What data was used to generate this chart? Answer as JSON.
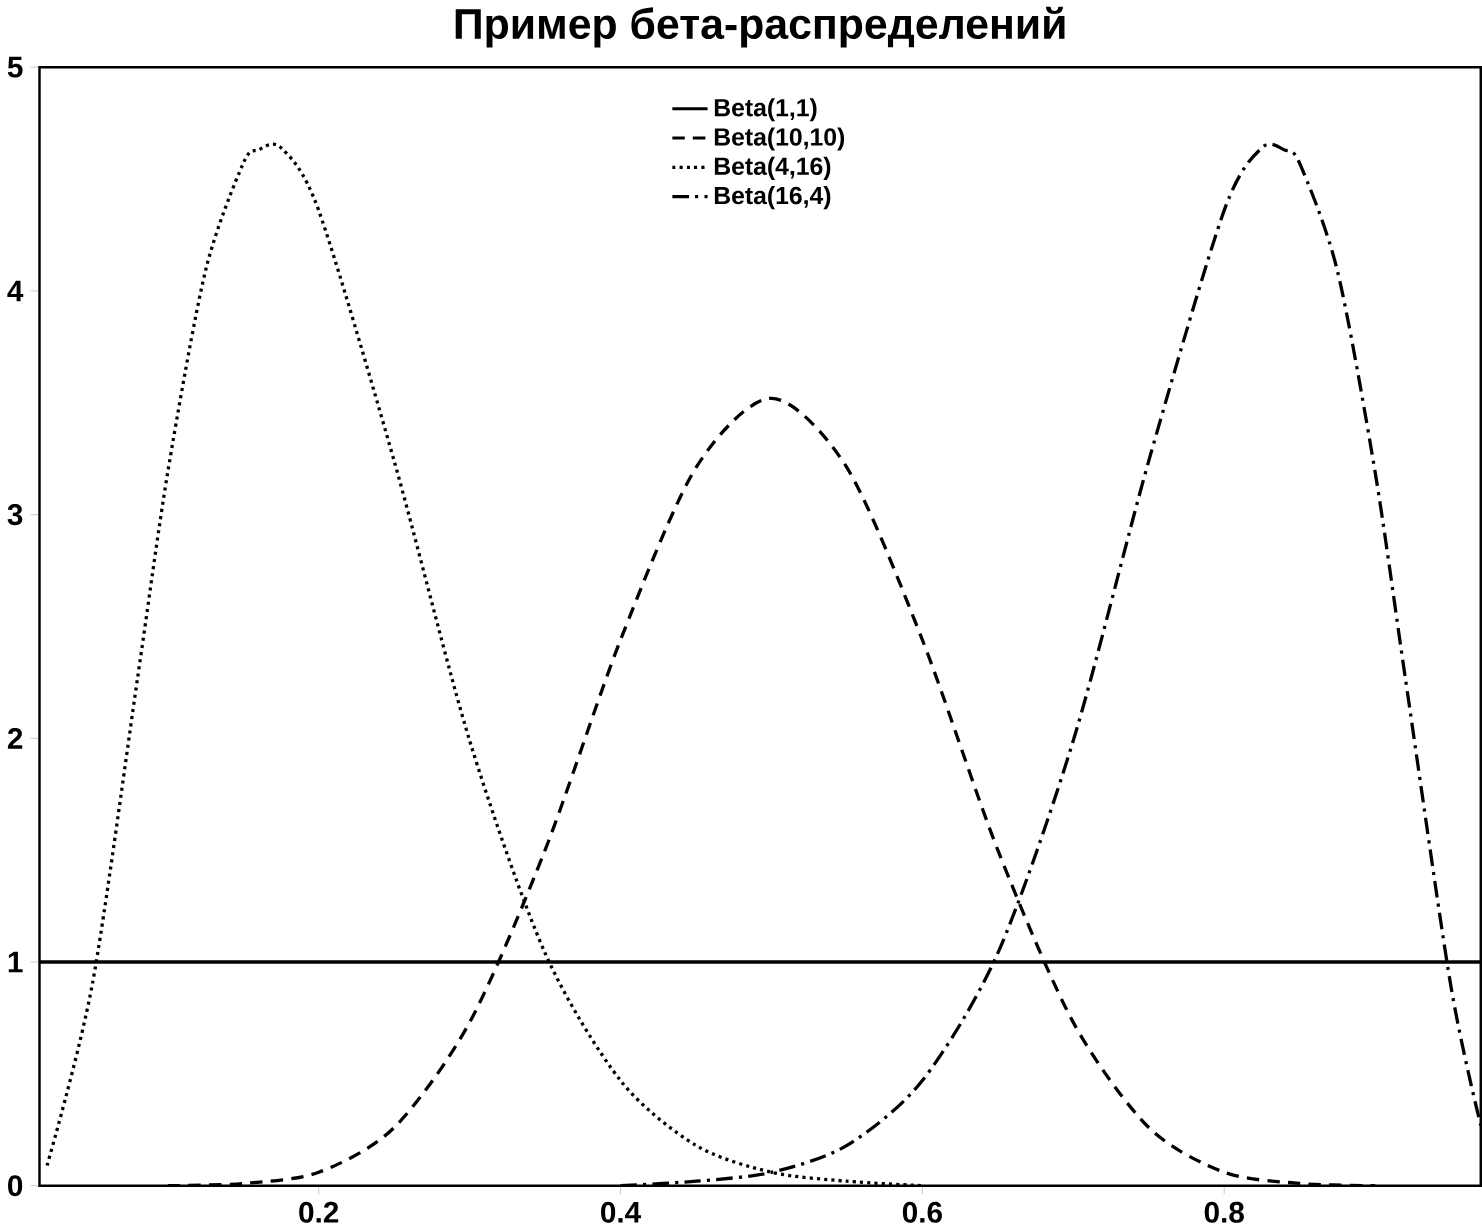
{
  "chart_data": {
    "type": "line",
    "title": "Пример бета-распределений",
    "xlim": [
      0.015,
      0.97
    ],
    "ylim": [
      0,
      5
    ],
    "xticks": [
      0.2,
      0.4,
      0.6,
      0.8
    ],
    "yticks": [
      0,
      1,
      2,
      3,
      4,
      5
    ],
    "legend": "top",
    "grid": false,
    "series": [
      {
        "name": "Beta(1,1)",
        "color": "#000000",
        "line_style": "solid",
        "x": [
          0.015,
          0.97
        ],
        "values": [
          1,
          1
        ]
      },
      {
        "name": "Beta(10,10)",
        "color": "#000000",
        "line_style": "dashed",
        "x": [
          0.1,
          0.15,
          0.2,
          0.25,
          0.3,
          0.35,
          0.4,
          0.45,
          0.5,
          0.55,
          0.6,
          0.65,
          0.7,
          0.75,
          0.8,
          0.85,
          0.9
        ],
        "values": [
          0.0,
          0.01,
          0.06,
          0.26,
          0.73,
          1.5,
          2.44,
          3.21,
          3.52,
          3.21,
          2.44,
          1.5,
          0.73,
          0.26,
          0.06,
          0.01,
          0.0
        ]
      },
      {
        "name": "Beta(4,16)",
        "color": "#000000",
        "line_style": "dotted",
        "x": [
          0.02,
          0.05,
          0.08,
          0.1,
          0.125,
          0.15,
          0.16,
          0.175,
          0.2,
          0.25,
          0.3,
          0.35,
          0.4,
          0.45,
          0.5,
          0.55,
          0.6
        ],
        "values": [
          0.09,
          0.9,
          2.27,
          3.19,
          4.09,
          4.57,
          4.63,
          4.64,
          4.36,
          3.24,
          1.99,
          1.04,
          0.47,
          0.18,
          0.06,
          0.02,
          0.0
        ]
      },
      {
        "name": "Beta(16,4)",
        "color": "#000000",
        "line_style": "dashdot",
        "x": [
          0.4,
          0.45,
          0.5,
          0.55,
          0.6,
          0.65,
          0.7,
          0.75,
          0.8,
          0.825,
          0.84,
          0.85,
          0.875,
          0.9,
          0.92,
          0.95,
          0.97
        ],
        "values": [
          0.0,
          0.02,
          0.06,
          0.18,
          0.47,
          1.04,
          1.99,
          3.24,
          4.36,
          4.64,
          4.63,
          4.57,
          4.09,
          3.19,
          2.27,
          0.9,
          0.27
        ]
      }
    ]
  }
}
